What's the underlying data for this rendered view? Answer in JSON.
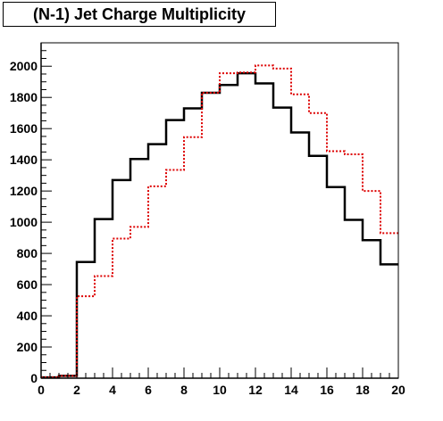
{
  "chart_data": {
    "type": "histogram",
    "title": "(N-1) Jet Charge Multiplicity",
    "xlabel": "",
    "ylabel": "",
    "xlim": [
      0,
      20
    ],
    "ylim": [
      0,
      2150
    ],
    "x_ticks": [
      "0",
      "2",
      "4",
      "6",
      "8",
      "10",
      "12",
      "14",
      "16",
      "18",
      "20"
    ],
    "y_ticks": [
      "0",
      "200",
      "400",
      "600",
      "800",
      "1000",
      "1200",
      "1400",
      "1600",
      "1800",
      "2000"
    ],
    "bin_edges": [
      0,
      1,
      2,
      3,
      4,
      5,
      6,
      7,
      8,
      9,
      10,
      11,
      12,
      13,
      14,
      15,
      16,
      17,
      18,
      19,
      20
    ],
    "series": [
      {
        "color": "#000000",
        "style": "solid",
        "values": [
          5,
          15,
          745,
          1020,
          1270,
          1405,
          1500,
          1655,
          1730,
          1830,
          1880,
          1955,
          1890,
          1735,
          1575,
          1425,
          1225,
          1015,
          885,
          730
        ]
      },
      {
        "color": "#dd0000",
        "style": "dotted",
        "values": [
          5,
          15,
          525,
          655,
          895,
          970,
          1230,
          1335,
          1545,
          1830,
          1955,
          1960,
          2005,
          1985,
          1820,
          1700,
          1455,
          1435,
          1200,
          930
        ]
      }
    ],
    "grid": false,
    "legend": "none"
  }
}
